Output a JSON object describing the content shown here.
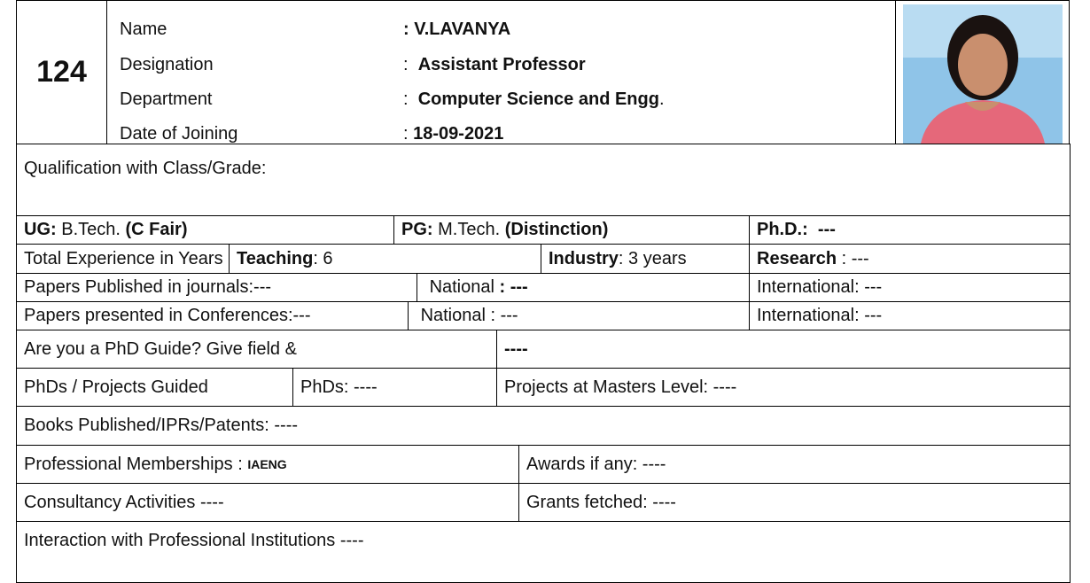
{
  "header": {
    "serial": "124",
    "fields": [
      {
        "label": "Name",
        "value": ": V.LAVANYA"
      },
      {
        "label": "Designation",
        "sep": ":",
        "value": "Assistant Professor"
      },
      {
        "label": "Department",
        "sep": ":",
        "value": "Computer Science and Engg",
        "suffix": "."
      },
      {
        "label": "Date of Joining",
        "sep": ":",
        "value": "18-09-2021"
      }
    ]
  },
  "qualification": "Qualification with Class/Grade:",
  "degrees": {
    "ug": {
      "label": "UG:",
      "degree": "B.Tech.",
      "grade": "(C Fair)"
    },
    "pg": {
      "label": "PG:",
      "degree": "M.Tech.",
      "grade": "(Distinction)"
    },
    "phd": {
      "label": "Ph.D.:",
      "value": "---"
    }
  },
  "experience": {
    "label": "Total Experience in Years",
    "teaching": {
      "label": "Teaching",
      "value": ": 6"
    },
    "industry": {
      "label": "Industry",
      "value": ": 3 years"
    },
    "research": {
      "label": "Research",
      "value": ": ---"
    }
  },
  "journals": {
    "label": "Papers Published in journals:---",
    "national": {
      "label": "National",
      "value": ": ---"
    },
    "international": "International: ---"
  },
  "conferences": {
    "label": "Papers presented in Conferences:---",
    "national": "National : ---",
    "international": "International: ---"
  },
  "phd_guide": {
    "label": "Are you a PhD Guide? Give field &",
    "value": "----"
  },
  "guided": {
    "label": "PhDs / Projects Guided",
    "phds": "PhDs: ----",
    "masters": "Projects at Masters Level: ----"
  },
  "books": "Books Published/IPRs/Patents: ----",
  "memberships": {
    "label": "Professional Memberships :",
    "value": "IAENG"
  },
  "awards": "Awards if any: ----",
  "consultancy": "Consultancy Activities ----",
  "grants": "Grants fetched: ----",
  "interaction": "Interaction with Professional Institutions ----"
}
